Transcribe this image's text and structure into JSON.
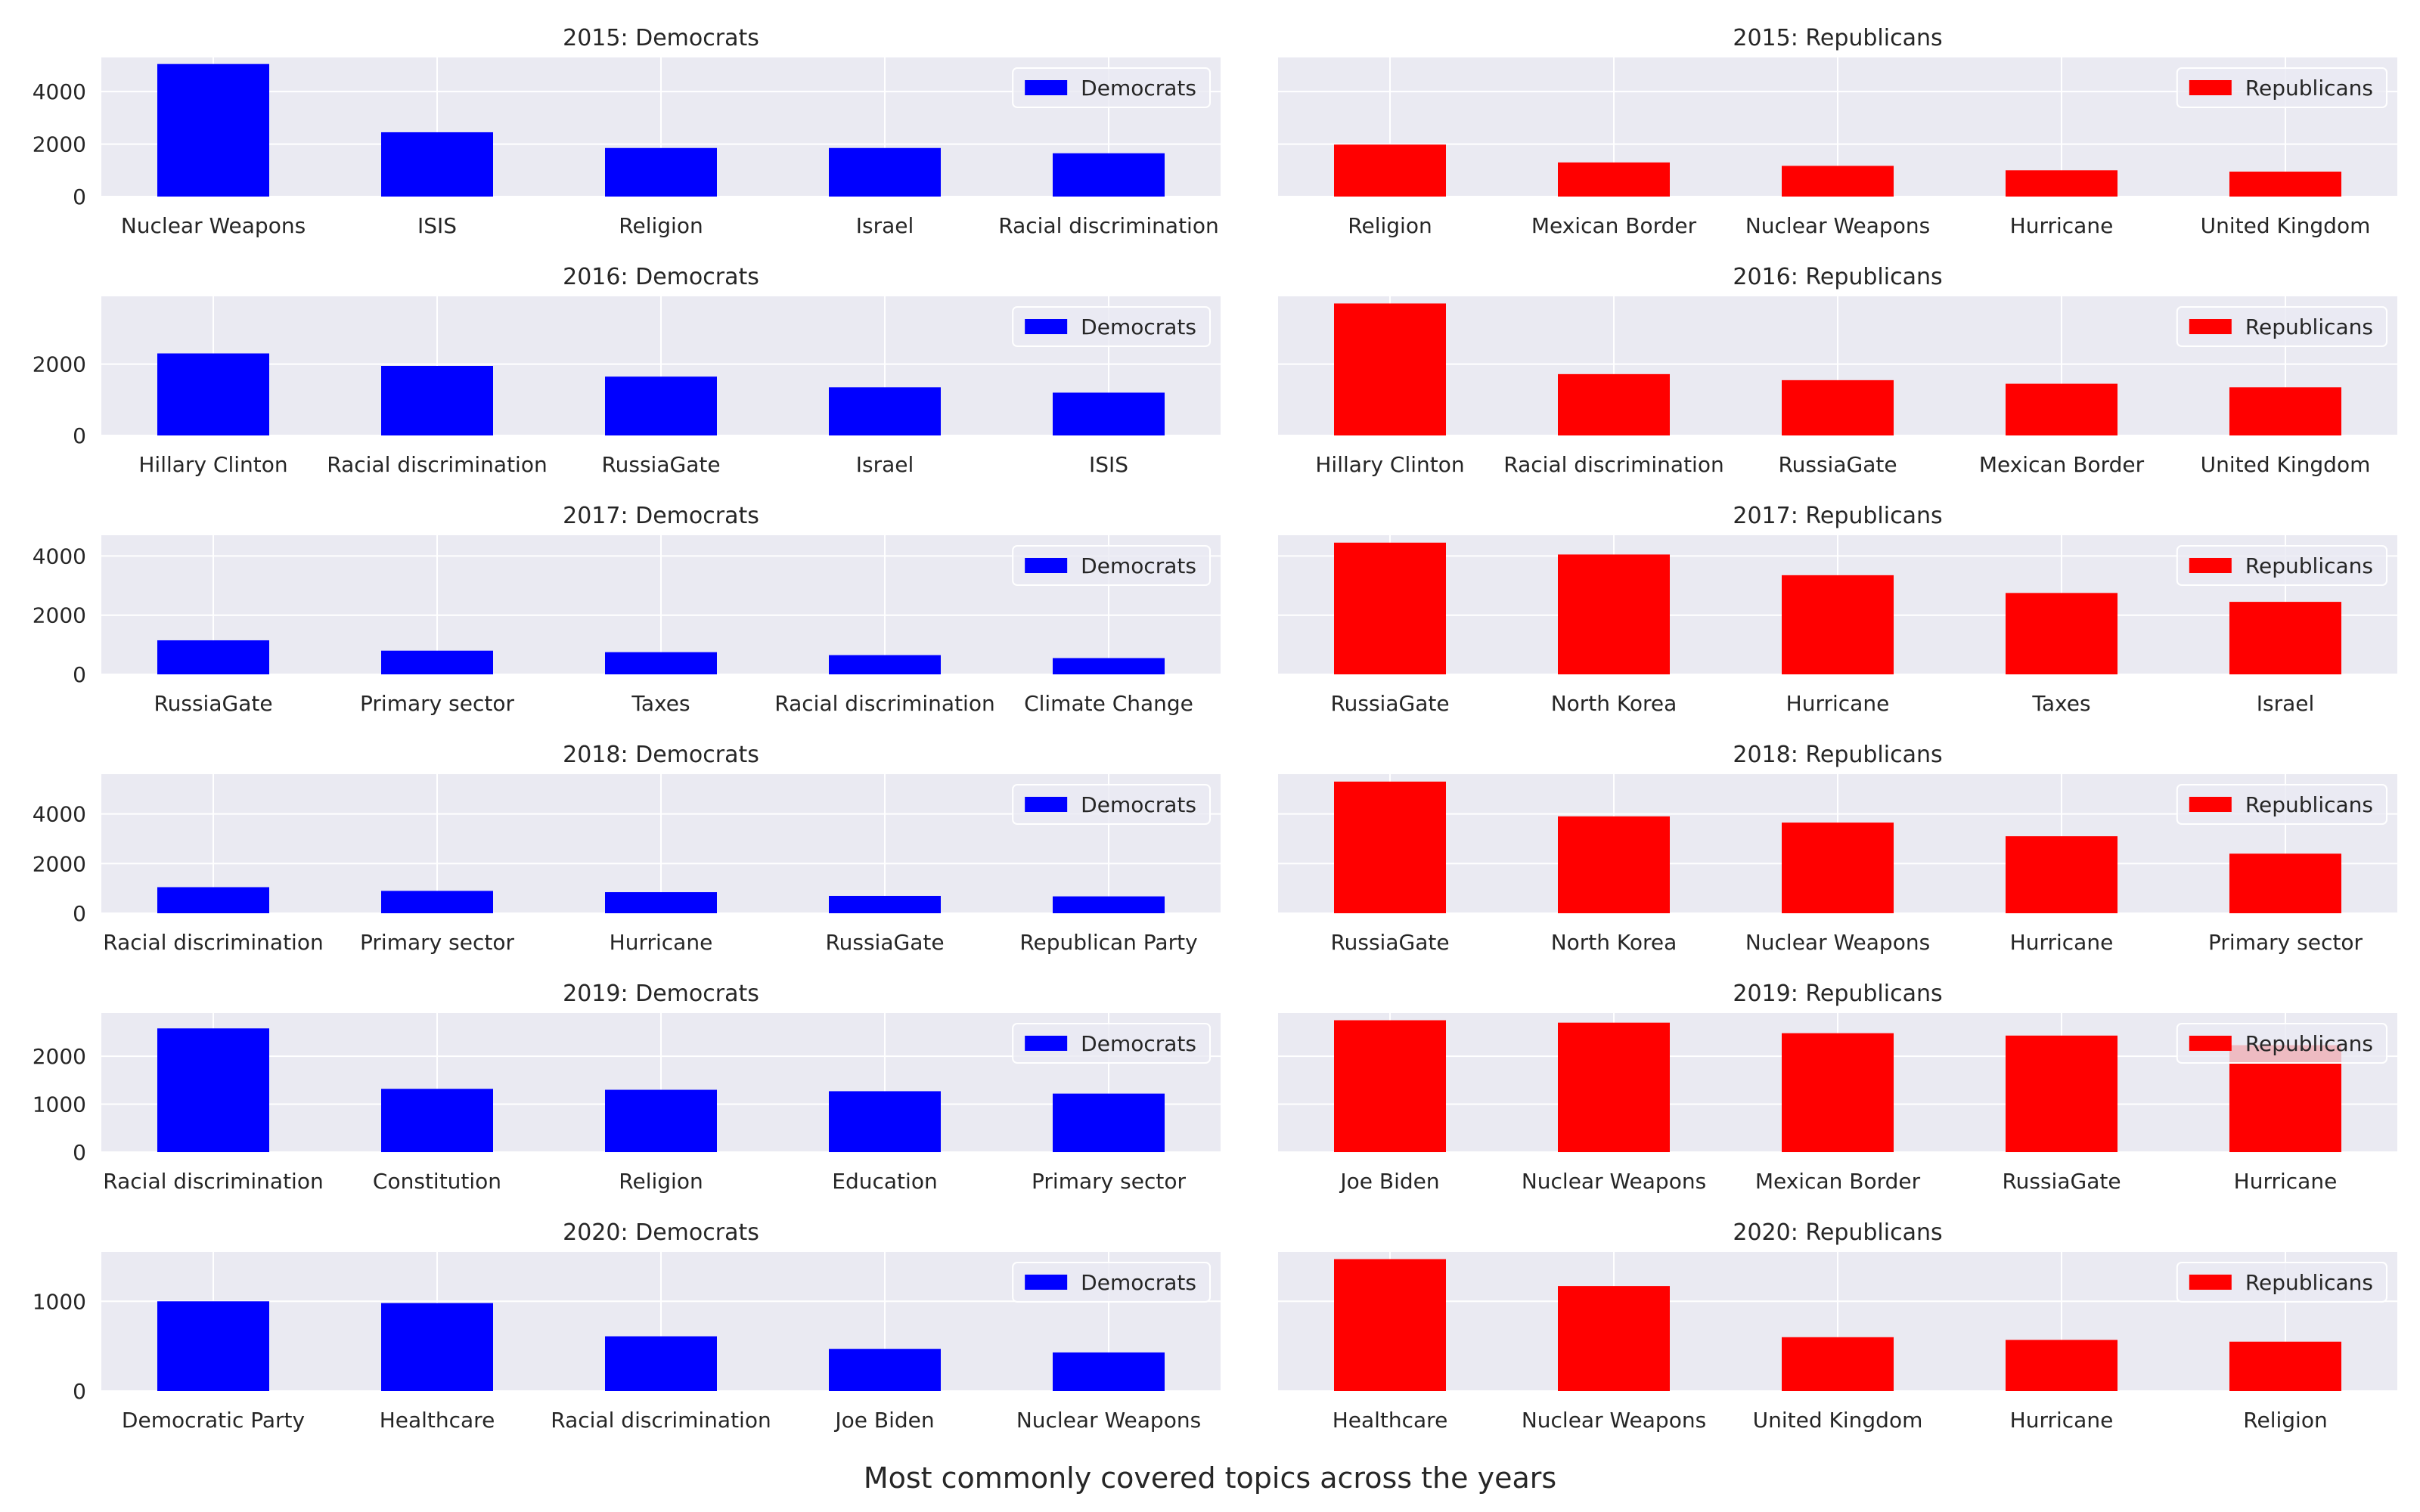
{
  "figure": {
    "suptitle": "Most commonly covered topics across the years",
    "colors": {
      "Democrats": "#0000ff",
      "Republicans": "#ff0000",
      "background": "#eaeaf2",
      "grid": "#ffffff",
      "text": "#262626"
    }
  },
  "chart_data": [
    {
      "type": "bar",
      "title": "2015: Democrats",
      "legend": "Democrats",
      "legend_loc": "top-right",
      "categories": [
        "Nuclear Weapons",
        "ISIS",
        "Religion",
        "Israel",
        "Racial discrimination"
      ],
      "values": [
        5050,
        2450,
        1850,
        1850,
        1650
      ],
      "ylim": [
        0,
        5300
      ],
      "yticks": [
        0,
        2000,
        4000
      ]
    },
    {
      "type": "bar",
      "title": "2015: Republicans",
      "legend": "Republicans",
      "legend_loc": "top-right",
      "categories": [
        "Religion",
        "Mexican Border",
        "Nuclear Weapons",
        "Hurricane",
        "United Kingdom"
      ],
      "values": [
        1980,
        1300,
        1170,
        1000,
        950
      ],
      "ylim": [
        0,
        5300
      ],
      "yticks": [
        0,
        2000,
        4000
      ]
    },
    {
      "type": "bar",
      "title": "2016: Democrats",
      "legend": "Democrats",
      "legend_loc": "top-right",
      "categories": [
        "Hillary Clinton",
        "Racial discrimination",
        "RussiaGate",
        "Israel",
        "ISIS"
      ],
      "values": [
        2300,
        1950,
        1650,
        1350,
        1200
      ],
      "ylim": [
        0,
        3900
      ],
      "yticks": [
        0,
        2000
      ]
    },
    {
      "type": "bar",
      "title": "2016: Republicans",
      "legend": "Republicans",
      "legend_loc": "top-right",
      "categories": [
        "Hillary Clinton",
        "Racial discrimination",
        "RussiaGate",
        "Mexican Border",
        "United Kingdom"
      ],
      "values": [
        3700,
        1720,
        1550,
        1450,
        1350
      ],
      "ylim": [
        0,
        3900
      ],
      "yticks": [
        0,
        2000
      ]
    },
    {
      "type": "bar",
      "title": "2017: Democrats",
      "legend": "Democrats",
      "legend_loc": "top-right",
      "categories": [
        "RussiaGate",
        "Primary sector",
        "Taxes",
        "Racial discrimination",
        "Climate Change"
      ],
      "values": [
        1150,
        800,
        750,
        650,
        550
      ],
      "ylim": [
        0,
        4700
      ],
      "yticks": [
        0,
        2000,
        4000
      ]
    },
    {
      "type": "bar",
      "title": "2017: Republicans",
      "legend": "Republicans",
      "legend_loc": "top-right",
      "categories": [
        "RussiaGate",
        "North Korea",
        "Hurricane",
        "Taxes",
        "Israel"
      ],
      "values": [
        4450,
        4050,
        3350,
        2750,
        2450
      ],
      "ylim": [
        0,
        4700
      ],
      "yticks": [
        0,
        2000,
        4000
      ]
    },
    {
      "type": "bar",
      "title": "2018: Democrats",
      "legend": "Democrats",
      "legend_loc": "top-right",
      "categories": [
        "Racial discrimination",
        "Primary sector",
        "Hurricane",
        "RussiaGate",
        "Republican Party"
      ],
      "values": [
        1050,
        900,
        850,
        700,
        680
      ],
      "ylim": [
        0,
        5600
      ],
      "yticks": [
        0,
        2000,
        4000
      ]
    },
    {
      "type": "bar",
      "title": "2018: Republicans",
      "legend": "Republicans",
      "legend_loc": "top-right",
      "categories": [
        "RussiaGate",
        "North Korea",
        "Nuclear Weapons",
        "Hurricane",
        "Primary sector"
      ],
      "values": [
        5300,
        3900,
        3650,
        3100,
        2400
      ],
      "ylim": [
        0,
        5600
      ],
      "yticks": [
        0,
        2000,
        4000
      ]
    },
    {
      "type": "bar",
      "title": "2019: Democrats",
      "legend": "Democrats",
      "legend_loc": "top-right",
      "categories": [
        "Racial discrimination",
        "Constitution",
        "Religion",
        "Education",
        "Primary sector"
      ],
      "values": [
        2580,
        1320,
        1300,
        1270,
        1220
      ],
      "ylim": [
        0,
        2900
      ],
      "yticks": [
        0,
        1000,
        2000
      ]
    },
    {
      "type": "bar",
      "title": "2019: Republicans",
      "legend": "Republicans",
      "legend_loc": "top-right",
      "categories": [
        "Joe Biden",
        "Nuclear Weapons",
        "Mexican Border",
        "RussiaGate",
        "Hurricane"
      ],
      "values": [
        2750,
        2700,
        2480,
        2430,
        2230
      ],
      "ylim": [
        0,
        2900
      ],
      "yticks": [
        0,
        1000,
        2000
      ]
    },
    {
      "type": "bar",
      "title": "2020: Democrats",
      "legend": "Democrats",
      "legend_loc": "top-right",
      "categories": [
        "Democratic Party",
        "Healthcare",
        "Racial discrimination",
        "Joe Biden",
        "Nuclear Weapons"
      ],
      "values": [
        1000,
        980,
        610,
        470,
        430
      ],
      "ylim": [
        0,
        1550
      ],
      "yticks": [
        0,
        1000
      ]
    },
    {
      "type": "bar",
      "title": "2020: Republicans",
      "legend": "Republicans",
      "legend_loc": "top-right",
      "categories": [
        "Healthcare",
        "Nuclear Weapons",
        "United Kingdom",
        "Hurricane",
        "Religion"
      ],
      "values": [
        1470,
        1170,
        600,
        570,
        550
      ],
      "ylim": [
        0,
        1550
      ],
      "yticks": [
        0,
        1000
      ]
    }
  ]
}
